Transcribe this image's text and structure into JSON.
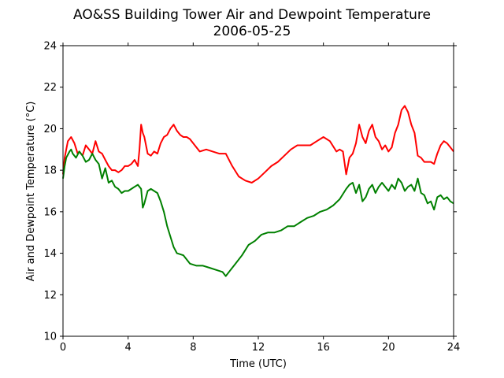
{
  "chart_data": {
    "type": "line",
    "title": "AO&SS Building Tower Air and Dewpoint Temperature",
    "subtitle": "2006-05-25",
    "xlabel": "Time (UTC)",
    "ylabel": "Air and Dewpoint Temperature (°C)",
    "xlim": [
      0,
      24
    ],
    "ylim": [
      10,
      24
    ],
    "xticks": [
      0,
      4,
      8,
      12,
      16,
      20,
      24
    ],
    "yticks": [
      10,
      12,
      14,
      16,
      18,
      20,
      22,
      24
    ],
    "xtick_labels": [
      "0",
      "4",
      "8",
      "12",
      "16",
      "20",
      "24"
    ],
    "ytick_labels": [
      "10",
      "12",
      "14",
      "16",
      "18",
      "20",
      "22",
      "24"
    ],
    "grid": false,
    "series": [
      {
        "color": "#ff0000",
        "x": [
          0,
          0.1,
          0.3,
          0.5,
          0.7,
          0.9,
          1.0,
          1.2,
          1.4,
          1.6,
          1.8,
          2.0,
          2.2,
          2.4,
          2.6,
          2.8,
          3.0,
          3.2,
          3.4,
          3.6,
          3.8,
          4.0,
          4.2,
          4.4,
          4.6,
          4.7,
          4.8,
          4.9,
          5.0,
          5.1,
          5.2,
          5.4,
          5.6,
          5.8,
          6.0,
          6.2,
          6.4,
          6.6,
          6.8,
          7.0,
          7.2,
          7.4,
          7.6,
          7.8,
          8.0,
          8.4,
          8.8,
          9.2,
          9.6,
          10.0,
          10.4,
          10.8,
          11.2,
          11.6,
          12.0,
          12.4,
          12.8,
          13.2,
          13.6,
          14.0,
          14.4,
          14.8,
          15.2,
          15.6,
          16.0,
          16.4,
          16.8,
          17.0,
          17.2,
          17.4,
          17.6,
          17.8,
          18.0,
          18.2,
          18.4,
          18.6,
          18.8,
          19.0,
          19.2,
          19.4,
          19.6,
          19.8,
          20.0,
          20.2,
          20.4,
          20.6,
          20.8,
          21.0,
          21.2,
          21.4,
          21.6,
          21.8,
          22.0,
          22.2,
          22.4,
          22.6,
          22.8,
          23.0,
          23.2,
          23.4,
          23.6,
          23.8,
          24.0
        ],
        "y": [
          17.8,
          18.6,
          19.4,
          19.6,
          19.3,
          18.8,
          18.9,
          18.7,
          19.2,
          19.0,
          18.8,
          19.4,
          18.9,
          18.8,
          18.5,
          18.2,
          18.0,
          18.0,
          17.9,
          18.0,
          18.2,
          18.2,
          18.3,
          18.5,
          18.2,
          19.0,
          20.2,
          19.8,
          19.6,
          19.2,
          18.8,
          18.7,
          18.9,
          18.8,
          19.3,
          19.6,
          19.7,
          20.0,
          20.2,
          19.9,
          19.7,
          19.6,
          19.6,
          19.5,
          19.3,
          18.9,
          19.0,
          18.9,
          18.8,
          18.8,
          18.2,
          17.7,
          17.5,
          17.4,
          17.6,
          17.9,
          18.2,
          18.4,
          18.7,
          19.0,
          19.2,
          19.2,
          19.2,
          19.4,
          19.6,
          19.4,
          18.9,
          19.0,
          18.9,
          17.8,
          18.6,
          18.8,
          19.3,
          20.2,
          19.6,
          19.3,
          19.9,
          20.2,
          19.6,
          19.4,
          19.0,
          19.2,
          18.9,
          19.1,
          19.8,
          20.2,
          20.9,
          21.1,
          20.8,
          20.2,
          19.8,
          18.7,
          18.6,
          18.4,
          18.4,
          18.4,
          18.3,
          18.8,
          19.2,
          19.4,
          19.3,
          19.1,
          18.9
        ]
      },
      {
        "color": "#008000",
        "x": [
          0,
          0.1,
          0.2,
          0.4,
          0.5,
          0.6,
          0.8,
          1.0,
          1.2,
          1.4,
          1.6,
          1.8,
          2.0,
          2.2,
          2.4,
          2.6,
          2.8,
          3.0,
          3.2,
          3.4,
          3.6,
          3.8,
          4.0,
          4.2,
          4.4,
          4.6,
          4.8,
          4.9,
          5.0,
          5.2,
          5.4,
          5.6,
          5.8,
          6.0,
          6.2,
          6.4,
          6.6,
          6.8,
          7.0,
          7.4,
          7.8,
          8.2,
          8.6,
          9.0,
          9.4,
          9.8,
          10.0,
          10.2,
          10.6,
          11.0,
          11.4,
          11.8,
          12.2,
          12.6,
          13.0,
          13.4,
          13.8,
          14.2,
          14.6,
          15.0,
          15.4,
          15.8,
          16.2,
          16.6,
          17.0,
          17.4,
          17.6,
          17.8,
          18.0,
          18.2,
          18.4,
          18.6,
          18.8,
          19.0,
          19.2,
          19.4,
          19.6,
          19.8,
          20.0,
          20.2,
          20.4,
          20.6,
          20.8,
          21.0,
          21.2,
          21.4,
          21.6,
          21.8,
          22.0,
          22.2,
          22.4,
          22.6,
          22.8,
          23.0,
          23.2,
          23.4,
          23.6,
          23.8,
          24.0
        ],
        "y": [
          17.6,
          18.2,
          18.6,
          18.9,
          19.0,
          18.8,
          18.6,
          18.9,
          18.7,
          18.4,
          18.5,
          18.8,
          18.5,
          18.3,
          17.6,
          18.1,
          17.4,
          17.5,
          17.2,
          17.1,
          16.9,
          17.0,
          17.0,
          17.1,
          17.2,
          17.3,
          17.1,
          16.2,
          16.4,
          17.0,
          17.1,
          17.0,
          16.9,
          16.5,
          16.0,
          15.3,
          14.8,
          14.3,
          14.0,
          13.9,
          13.5,
          13.4,
          13.4,
          13.3,
          13.2,
          13.1,
          12.9,
          13.1,
          13.5,
          13.9,
          14.4,
          14.6,
          14.9,
          15.0,
          15.0,
          15.1,
          15.3,
          15.3,
          15.5,
          15.7,
          15.8,
          16.0,
          16.1,
          16.3,
          16.6,
          17.1,
          17.3,
          17.4,
          16.9,
          17.3,
          16.5,
          16.7,
          17.1,
          17.3,
          16.9,
          17.2,
          17.4,
          17.2,
          17.0,
          17.3,
          17.1,
          17.6,
          17.4,
          17.0,
          17.2,
          17.3,
          17.0,
          17.6,
          16.9,
          16.8,
          16.4,
          16.5,
          16.1,
          16.7,
          16.8,
          16.6,
          16.7,
          16.5,
          16.4
        ]
      }
    ]
  }
}
